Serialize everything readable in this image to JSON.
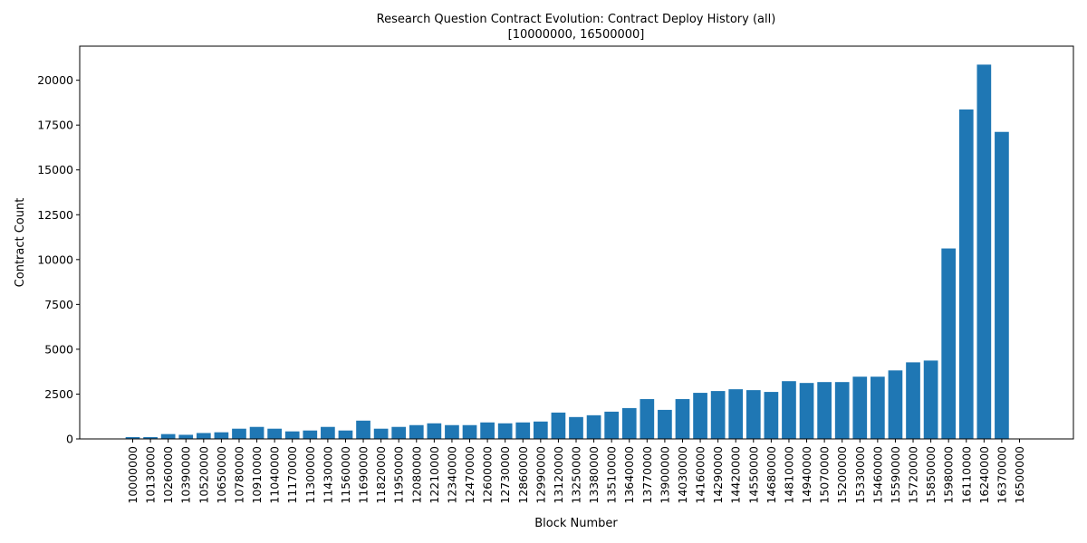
{
  "chart_data": {
    "type": "bar",
    "title": "Research Question Contract Evolution: Contract Deploy History (all)",
    "subtitle": "[10000000, 16500000]",
    "xlabel": "Block Number",
    "ylabel": "Contract Count",
    "ylim": [
      0,
      21900
    ],
    "yticks": [
      0,
      2500,
      5000,
      7500,
      10000,
      12500,
      15000,
      17500,
      20000
    ],
    "ytick_labels": [
      "0",
      "2500",
      "5000",
      "7500",
      "10000",
      "12500",
      "15000",
      "17500",
      "20000"
    ],
    "grid": false,
    "color": "#1f77b4",
    "categories": [
      "10000000",
      "10130000",
      "10260000",
      "10390000",
      "10520000",
      "10650000",
      "10780000",
      "10910000",
      "11040000",
      "11170000",
      "11300000",
      "11430000",
      "11560000",
      "11690000",
      "11820000",
      "11950000",
      "12080000",
      "12210000",
      "12340000",
      "12470000",
      "12600000",
      "12730000",
      "12860000",
      "12990000",
      "13120000",
      "13250000",
      "13380000",
      "13510000",
      "13640000",
      "13770000",
      "13900000",
      "14030000",
      "14160000",
      "14290000",
      "14420000",
      "14550000",
      "14680000",
      "14810000",
      "14940000",
      "15070000",
      "15200000",
      "15330000",
      "15460000",
      "15590000",
      "15720000",
      "15850000",
      "15980000",
      "16110000",
      "16240000",
      "16370000",
      "16500000"
    ],
    "values": [
      100,
      100,
      270,
      230,
      330,
      370,
      570,
      670,
      570,
      420,
      470,
      670,
      470,
      1020,
      570,
      670,
      770,
      870,
      770,
      770,
      920,
      870,
      920,
      970,
      1470,
      1220,
      1320,
      1520,
      1720,
      2220,
      1620,
      2220,
      2570,
      2670,
      2770,
      2720,
      2620,
      3220,
      3120,
      3170,
      3170,
      3470,
      3470,
      3820,
      4270,
      4370,
      10620,
      18370,
      20870,
      17120,
      0
    ]
  }
}
